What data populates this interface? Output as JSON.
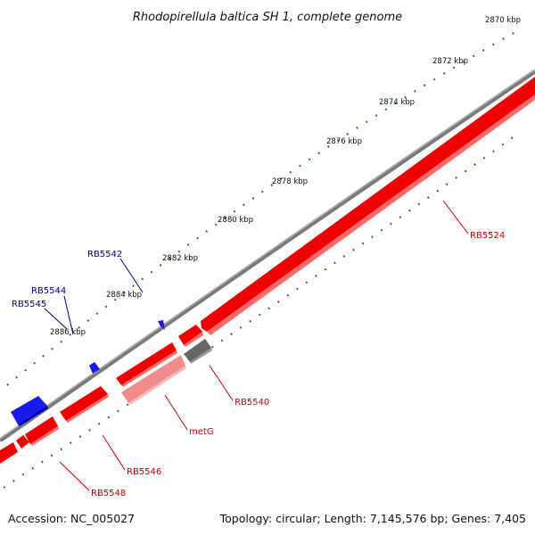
{
  "title": "Rhodopirellula baltica SH 1, complete genome",
  "accession": "Accession: NC_005027",
  "summary": "Topology: circular; Length: 7,145,576 bp; Genes: 7,405",
  "scale_labels": [
    "2870 kbp",
    "2872 kbp",
    "2874 kbp",
    "2876 kbp",
    "2878 kbp",
    "2880 kbp",
    "2882 kbp",
    "2884 kbp",
    "2886 kbp"
  ],
  "gene_labels": {
    "RB5524": "RB5524",
    "RB5540": "RB5540",
    "metG": "metG",
    "RB5546": "RB5546",
    "RB5548": "RB5548",
    "RB5542": "RB5542",
    "RB5544": "RB5544",
    "RB5545": "RB5545"
  },
  "colors": {
    "forward_gene": "#ee0000",
    "forward_gene_light": "#f08c8c",
    "reverse_gene": "#1a1aee",
    "pseudo_gene": "#666666",
    "backbone": "#808080",
    "ticks": "#1a7a1a",
    "forward_label": "#cc0000",
    "reverse_label": "#000099"
  },
  "icons": [
    "gene-arrow",
    "tick-mark"
  ]
}
